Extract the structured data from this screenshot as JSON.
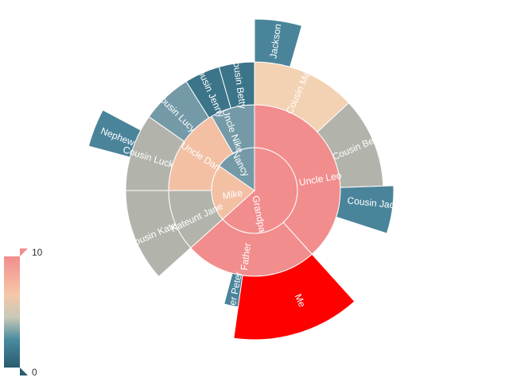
{
  "chart_data": {
    "type": "sunburst",
    "root": {
      "name": "Grandpa",
      "children": [
        {
          "name": "Uncle Leo",
          "value": 15,
          "children": [
            {
              "name": "Cousin Jack",
              "value": 2
            },
            {
              "name": "Cousin Mary",
              "value": 5,
              "children": [
                {
                  "name": "Jackson",
                  "value": 2
                }
              ]
            },
            {
              "name": "Cousin Ben",
              "value": 4
            }
          ]
        },
        {
          "name": "Father",
          "value": 10,
          "children": [
            {
              "name": "Me",
              "value": 5
            },
            {
              "name": "Brother Peter",
              "value": 1
            }
          ]
        }
      ]
    },
    "nancy": {
      "name": "Nancy",
      "children": [
        {
          "name": "Uncle Nike",
          "children": [
            {
              "name": "Cousin Betty",
              "value": 1
            },
            {
              "name": "Cousin Jenny",
              "value": 2
            }
          ]
        }
      ]
    },
    "mike": {
      "name": "Mike",
      "children": [
        {
          "name": "Uncle Dan",
          "children": [
            {
              "name": "Cousin Lucy",
              "value": 3
            },
            {
              "name": "Cousin Luck",
              "value": 4,
              "children": [
                {
                  "name": "Nephew",
                  "value": 2
                }
              ]
            }
          ]
        },
        {
          "name": "Kateunt Jane",
          "children": [
            {
              "name": "Cousin Kate",
              "value": 4
            }
          ]
        }
      ]
    },
    "visual_map": {
      "min": 0,
      "max": 10,
      "min_label": "0",
      "max_label": "10"
    },
    "colors": {
      "highlight": "#ff0000",
      "gradient": [
        "#2a5b6e",
        "#4a8aa0",
        "#88a8b2",
        "#e8c8a8",
        "#f5c4a0",
        "#f28d8d"
      ]
    }
  }
}
